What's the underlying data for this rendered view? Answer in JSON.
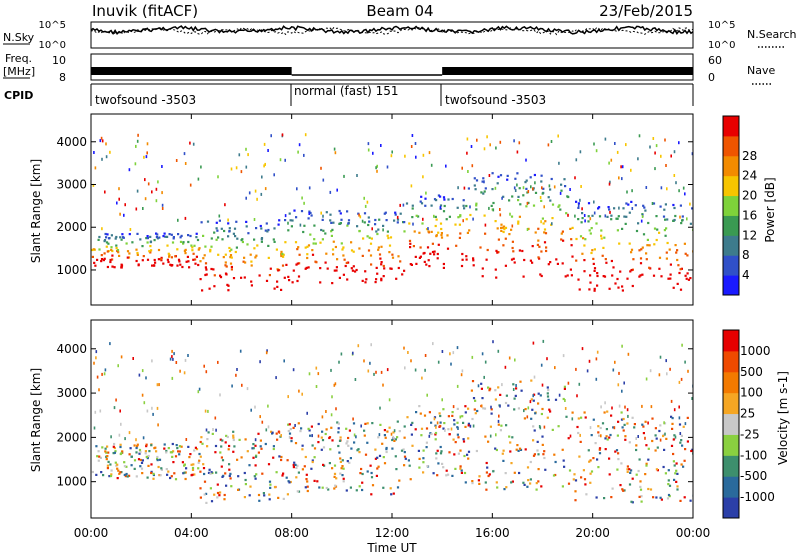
{
  "header": {
    "station": "Inuvik (fitACF)",
    "beam": "Beam 04",
    "date": "23/Feb/2015"
  },
  "panels": {
    "nsky": {
      "left_label": "N.Sky",
      "left_ticks": [
        "10^5",
        "10^0"
      ],
      "right_label": "N.Search",
      "right_ticks": [
        "10^5",
        "10^0"
      ],
      "right_style": "dotted"
    },
    "freq": {
      "left_label_1": "Freq.",
      "left_label_2": "[MHz]",
      "left_ticks": [
        "10",
        "8"
      ],
      "right_label": "Nave",
      "right_ticks": [
        "60",
        "0"
      ],
      "right_style": "dotted"
    },
    "cpid": {
      "label": "CPID",
      "segments": [
        {
          "label": "twofsound -3503",
          "start_h": 0,
          "end_h": 8
        },
        {
          "label": "normal (fast) 151",
          "start_h": 8,
          "end_h": 14
        },
        {
          "label": "twofsound -3503",
          "start_h": 14,
          "end_h": 24
        }
      ]
    }
  },
  "chart_data": [
    {
      "type": "heatmap",
      "quantity": "Power",
      "ylabel": "Slant Range [km]",
      "ylim": [
        180,
        4650
      ],
      "yticks": [
        "1000",
        "2000",
        "3000",
        "4000"
      ],
      "colorbar_label": "Power [dB]",
      "colorbar_ticks": [
        "4",
        "8",
        "12",
        "16",
        "20",
        "24",
        "28"
      ],
      "colorbar_colors": [
        "#1a1aff",
        "#3050c8",
        "#3d7b8c",
        "#3a9a52",
        "#7ed23a",
        "#f7c500",
        "#f38b00",
        "#ef5500",
        "#e80000"
      ]
    },
    {
      "type": "heatmap",
      "quantity": "Velocity",
      "ylabel": "Slant Range [km]",
      "ylim": [
        180,
        4650
      ],
      "yticks": [
        "1000",
        "2000",
        "3000",
        "4000"
      ],
      "colorbar_label": "Velocity [m s-1]",
      "colorbar_ticks": [
        "1000",
        "500",
        "100",
        "25",
        "-25",
        "-100",
        "-500",
        "-1000"
      ],
      "colorbar_colors": [
        "#2b3fa8",
        "#2a6a9c",
        "#3d8f6d",
        "#8ad040",
        "#c8c8c8",
        "#f5a623",
        "#f37a00",
        "#ef4a00",
        "#e60000"
      ]
    }
  ],
  "xaxis": {
    "label": "Time UT",
    "ticks": [
      "00:00",
      "04:00",
      "08:00",
      "12:00",
      "16:00",
      "20:00",
      "00:00"
    ],
    "xlim_hours": [
      0,
      24
    ]
  }
}
